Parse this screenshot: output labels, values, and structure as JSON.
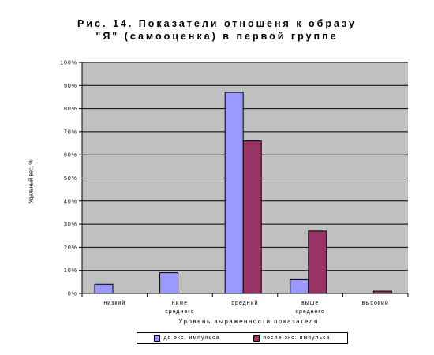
{
  "chart_data": {
    "type": "bar",
    "title_lines": [
      "Рис. 14. Показатели отношеня к образу",
      "\"Я\" (самооценка) в первой группе"
    ],
    "categories": [
      [
        "низкий"
      ],
      [
        "ниже",
        "среднего"
      ],
      [
        "средний"
      ],
      [
        "выше",
        "среднего"
      ],
      [
        "высокий"
      ]
    ],
    "series": [
      {
        "name": "до экс. импульса",
        "color": "#9999ff",
        "values": [
          4,
          9,
          87,
          6,
          0
        ]
      },
      {
        "name": "после экс. импульса",
        "color": "#993366",
        "values": [
          0,
          0,
          66,
          27,
          1
        ]
      }
    ],
    "ylim": [
      0,
      100
    ],
    "yticks": [
      "0%",
      "10%",
      "20%",
      "30%",
      "40%",
      "50%",
      "60%",
      "70%",
      "80%",
      "90%",
      "100%"
    ],
    "ylabel": "Удельный вес, %",
    "xlabel": "Уровень выраженности показателя",
    "plot_background": "#c0c0c0",
    "grid": true,
    "legend_position": "bottom"
  }
}
